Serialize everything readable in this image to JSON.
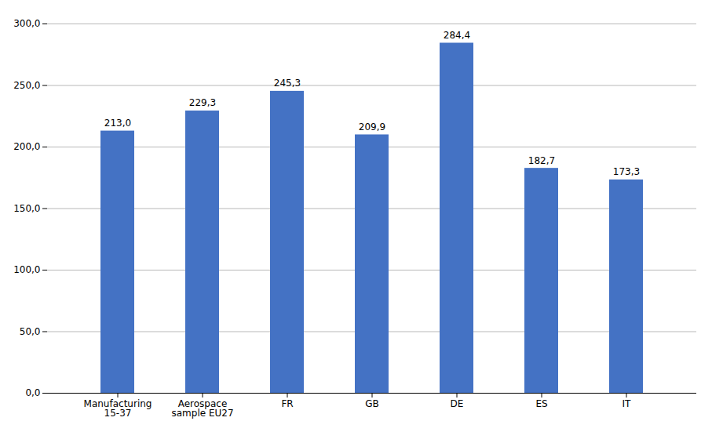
{
  "chart_data": {
    "type": "bar",
    "categories": [
      "Manufacturing\n15-37",
      "Aerospace\nsample EU27",
      "FR",
      "GB",
      "DE",
      "ES",
      "IT"
    ],
    "values": [
      213.0,
      229.3,
      245.3,
      209.9,
      284.4,
      182.7,
      173.3
    ],
    "value_labels": [
      "213,0",
      "229,3",
      "245,3",
      "209,9",
      "284,4",
      "182,7",
      "173,3"
    ],
    "data_labels": true,
    "color": "#4472C4",
    "ylim": [
      0,
      300
    ],
    "yticks": [
      {
        "value": 0,
        "label": "0,0"
      },
      {
        "value": 50,
        "label": "50,0"
      },
      {
        "value": 100,
        "label": "100,0"
      },
      {
        "value": 150,
        "label": "150,0"
      },
      {
        "value": 200,
        "label": "200,0"
      },
      {
        "value": 250,
        "label": "250,0"
      },
      {
        "value": 300,
        "label": "300,0"
      }
    ],
    "grid": true
  }
}
